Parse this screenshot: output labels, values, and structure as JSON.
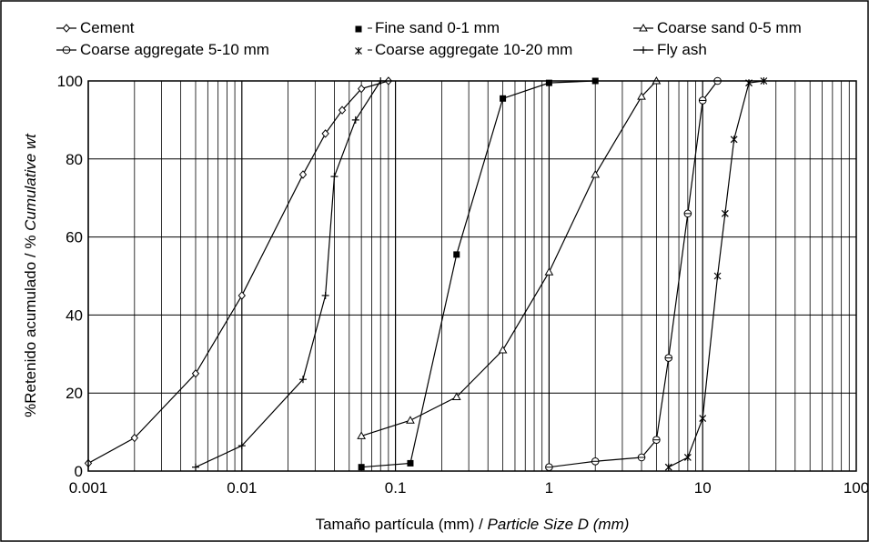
{
  "chart_data": {
    "type": "line",
    "xscale": "log",
    "xlim": [
      0.001,
      100
    ],
    "ylim": [
      0,
      100
    ],
    "x_ticks": [
      "0.001",
      "0.01",
      "0.1",
      "1",
      "10",
      "100"
    ],
    "y_ticks": [
      "0",
      "20",
      "40",
      "60",
      "80",
      "100"
    ],
    "xlabel_es": "Tamaño partícula (mm) / ",
    "xlabel_en": "Particle Size D (mm)",
    "ylabel_es": "%Retenido acumulado / % ",
    "ylabel_en": "Cumulative wt",
    "grid": true,
    "legend_position": "top",
    "series": [
      {
        "name": "Cement",
        "marker": "diamond",
        "x": [
          0.001,
          0.002,
          0.005,
          0.01,
          0.025,
          0.035,
          0.045,
          0.06,
          0.09
        ],
        "y": [
          2,
          8.5,
          25,
          45,
          76,
          86.5,
          92.5,
          98,
          100
        ]
      },
      {
        "name": "Fine sand 0-1 mm",
        "marker": "square",
        "x": [
          0.06,
          0.125,
          0.25,
          0.5,
          1,
          2
        ],
        "y": [
          1,
          2,
          55.5,
          95.5,
          99.5,
          100
        ]
      },
      {
        "name": "Coarse sand 0-5 mm",
        "marker": "triangle",
        "x": [
          0.06,
          0.125,
          0.25,
          0.5,
          1,
          2,
          4,
          5
        ],
        "y": [
          9,
          13,
          19,
          31,
          51,
          76,
          96,
          100
        ]
      },
      {
        "name": "Coarse aggregate 5-10 mm",
        "marker": "circle",
        "x": [
          1,
          2,
          4,
          5,
          6,
          8,
          10,
          12.5
        ],
        "y": [
          1,
          2.5,
          3.5,
          8,
          29,
          66,
          95,
          100
        ]
      },
      {
        "name": "Coarse aggregate 10-20 mm",
        "marker": "asterisk",
        "x": [
          6,
          8,
          10,
          12.5,
          14,
          16,
          20,
          25
        ],
        "y": [
          1,
          3.5,
          13.5,
          50,
          66,
          85,
          99.5,
          100
        ]
      },
      {
        "name": "Fly ash",
        "marker": "plus",
        "x": [
          0.005,
          0.01,
          0.025,
          0.035,
          0.04,
          0.055,
          0.08
        ],
        "y": [
          1,
          6.5,
          23.5,
          45,
          75.5,
          90,
          100
        ]
      }
    ]
  }
}
